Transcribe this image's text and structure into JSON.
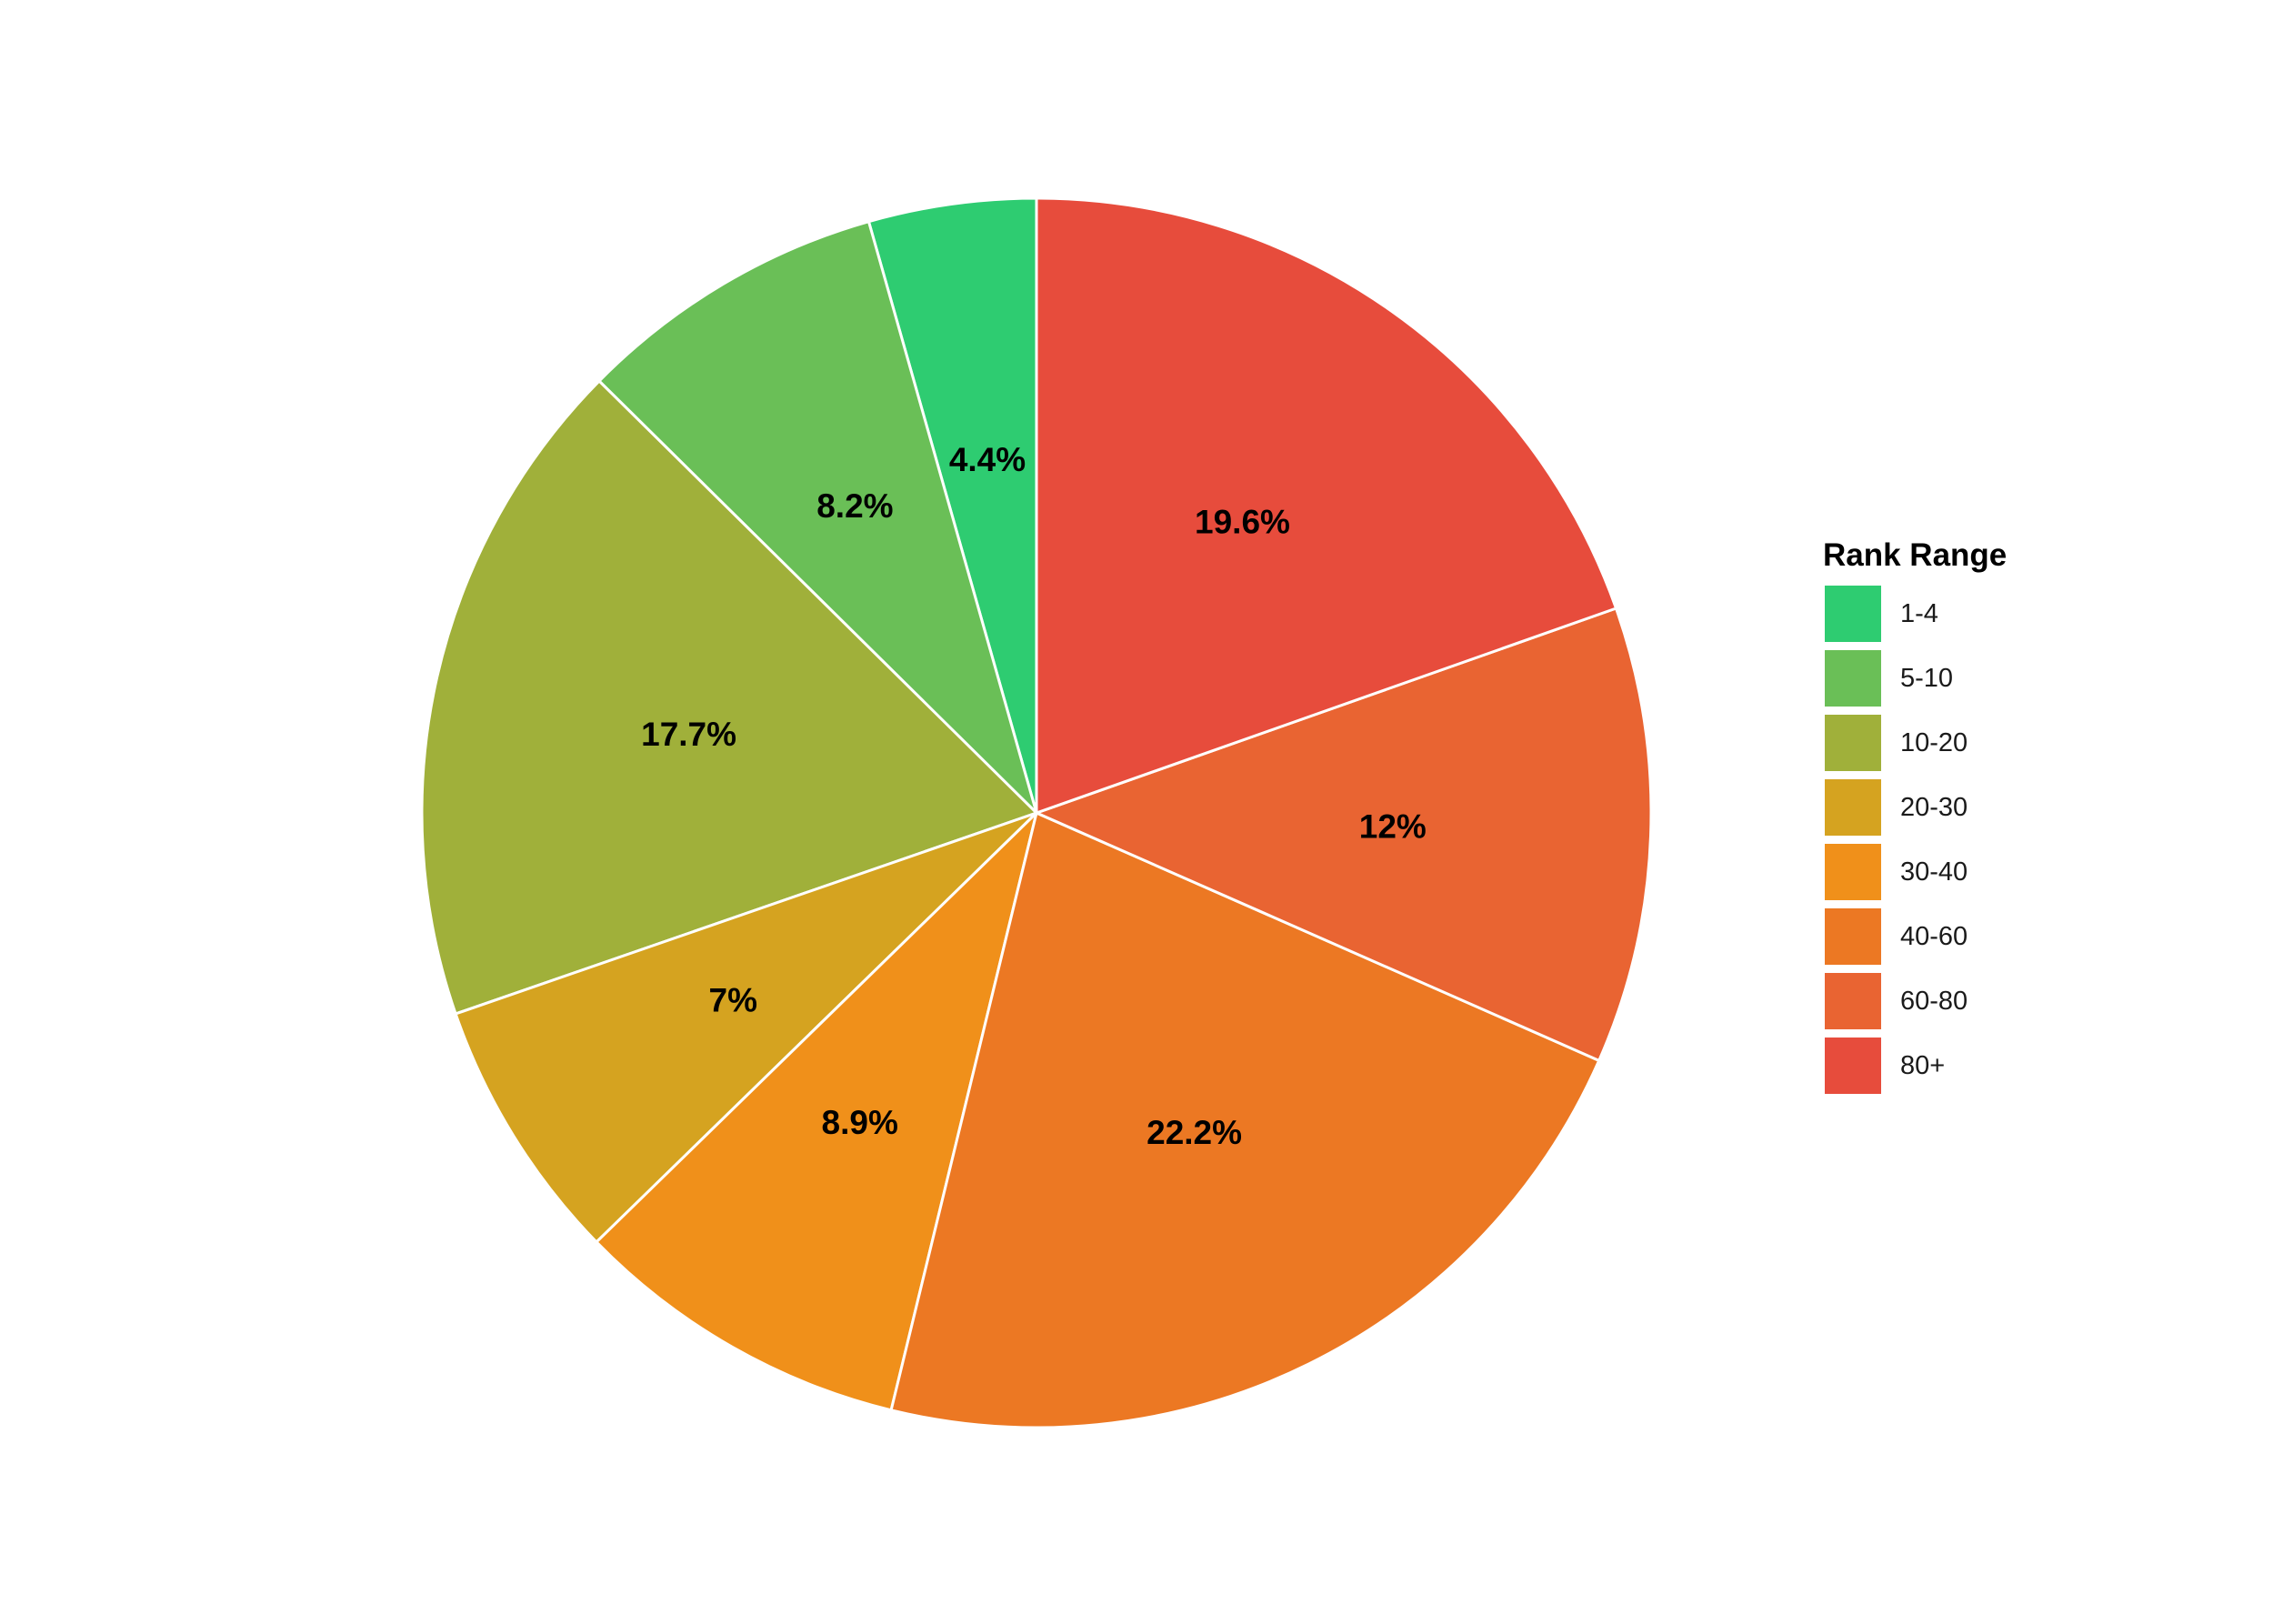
{
  "chart_data": {
    "type": "pie",
    "categories": [
      "1-4",
      "5-10",
      "10-20",
      "20-30",
      "30-40",
      "40-60",
      "60-80",
      "80+"
    ],
    "values": [
      4.4,
      8.2,
      17.7,
      7,
      8.9,
      22.2,
      12,
      19.6
    ],
    "labels": [
      "4.4%",
      "8.2%",
      "17.7%",
      "7%",
      "8.9%",
      "22.2%",
      "12%",
      "19.6%"
    ],
    "colors": [
      "#2ecc71",
      "#6abf57",
      "#a0b03a",
      "#d5a320",
      "#f0901a",
      "#ec7823",
      "#e96432",
      "#e74c3c"
    ],
    "direction": "counterclockwise-from-top",
    "legend": {
      "title": "Rank Range",
      "position": "right"
    }
  }
}
